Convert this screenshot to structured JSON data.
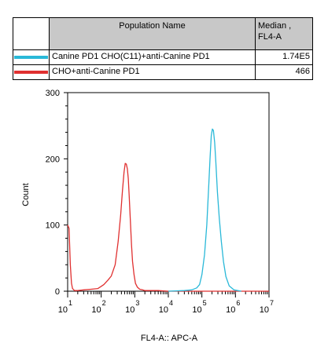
{
  "table": {
    "header_population": "Population Name",
    "header_median_line1": "Median ,",
    "header_median_line2": "FL4-A",
    "rows": [
      {
        "name": "Canine PD1 CHO(C11)+anti-Canine PD1",
        "median": "1.74E5",
        "color": "#29b8d8"
      },
      {
        "name": "CHO+anti-Canine PD1",
        "median": "466",
        "color": "#e03030"
      }
    ]
  },
  "chart_data": {
    "type": "line",
    "title": "",
    "xlabel": "FL4-A:: APC-A",
    "ylabel": "Count",
    "xscale": "log",
    "xlim": [
      10,
      10000000
    ],
    "ylim": [
      0,
      300
    ],
    "y_ticks": [
      0,
      100,
      200,
      300
    ],
    "x_ticks": [
      {
        "value": 10,
        "base": "10",
        "exp": "1"
      },
      {
        "value": 100,
        "base": "10",
        "exp": "2"
      },
      {
        "value": 1000,
        "base": "10",
        "exp": "3"
      },
      {
        "value": 10000,
        "base": "10",
        "exp": "4"
      },
      {
        "value": 100000,
        "base": "10",
        "exp": "5"
      },
      {
        "value": 1000000,
        "base": "10",
        "exp": "6"
      },
      {
        "value": 10000000,
        "base": "10",
        "exp": "7"
      }
    ],
    "series": [
      {
        "name": "CHO+anti-Canine PD1",
        "color": "#e03030",
        "x": [
          10,
          11,
          12,
          13,
          14,
          16,
          20,
          30,
          50,
          80,
          120,
          160,
          200,
          260,
          320,
          380,
          430,
          480,
          520,
          560,
          600,
          640,
          680,
          720,
          760,
          800,
          860,
          950,
          1050,
          1200,
          1400,
          1700,
          2000,
          3000,
          5000,
          10000,
          30000,
          100000,
          500000,
          1000000,
          10000000
        ],
        "y": [
          100,
          95,
          40,
          12,
          4,
          1,
          1,
          2,
          3,
          4,
          10,
          17,
          23,
          40,
          75,
          115,
          152,
          180,
          193,
          192,
          185,
          170,
          145,
          120,
          95,
          70,
          45,
          25,
          12,
          6,
          3,
          2,
          1,
          1,
          1,
          0,
          0,
          0,
          0,
          0,
          0
        ]
      },
      {
        "name": "Canine PD1 CHO(C11)+anti-Canine PD1",
        "color": "#29b8d8",
        "x": [
          10000,
          30000,
          50000,
          70000,
          85000,
          100000,
          120000,
          140000,
          160000,
          175000,
          190000,
          205000,
          220000,
          240000,
          260000,
          290000,
          330000,
          380000,
          440000,
          520000,
          650000,
          900000,
          1500000
        ],
        "y": [
          0,
          1,
          2,
          5,
          10,
          25,
          55,
          100,
          160,
          200,
          235,
          245,
          243,
          225,
          195,
          150,
          110,
          75,
          45,
          22,
          8,
          2,
          0
        ]
      }
    ]
  }
}
